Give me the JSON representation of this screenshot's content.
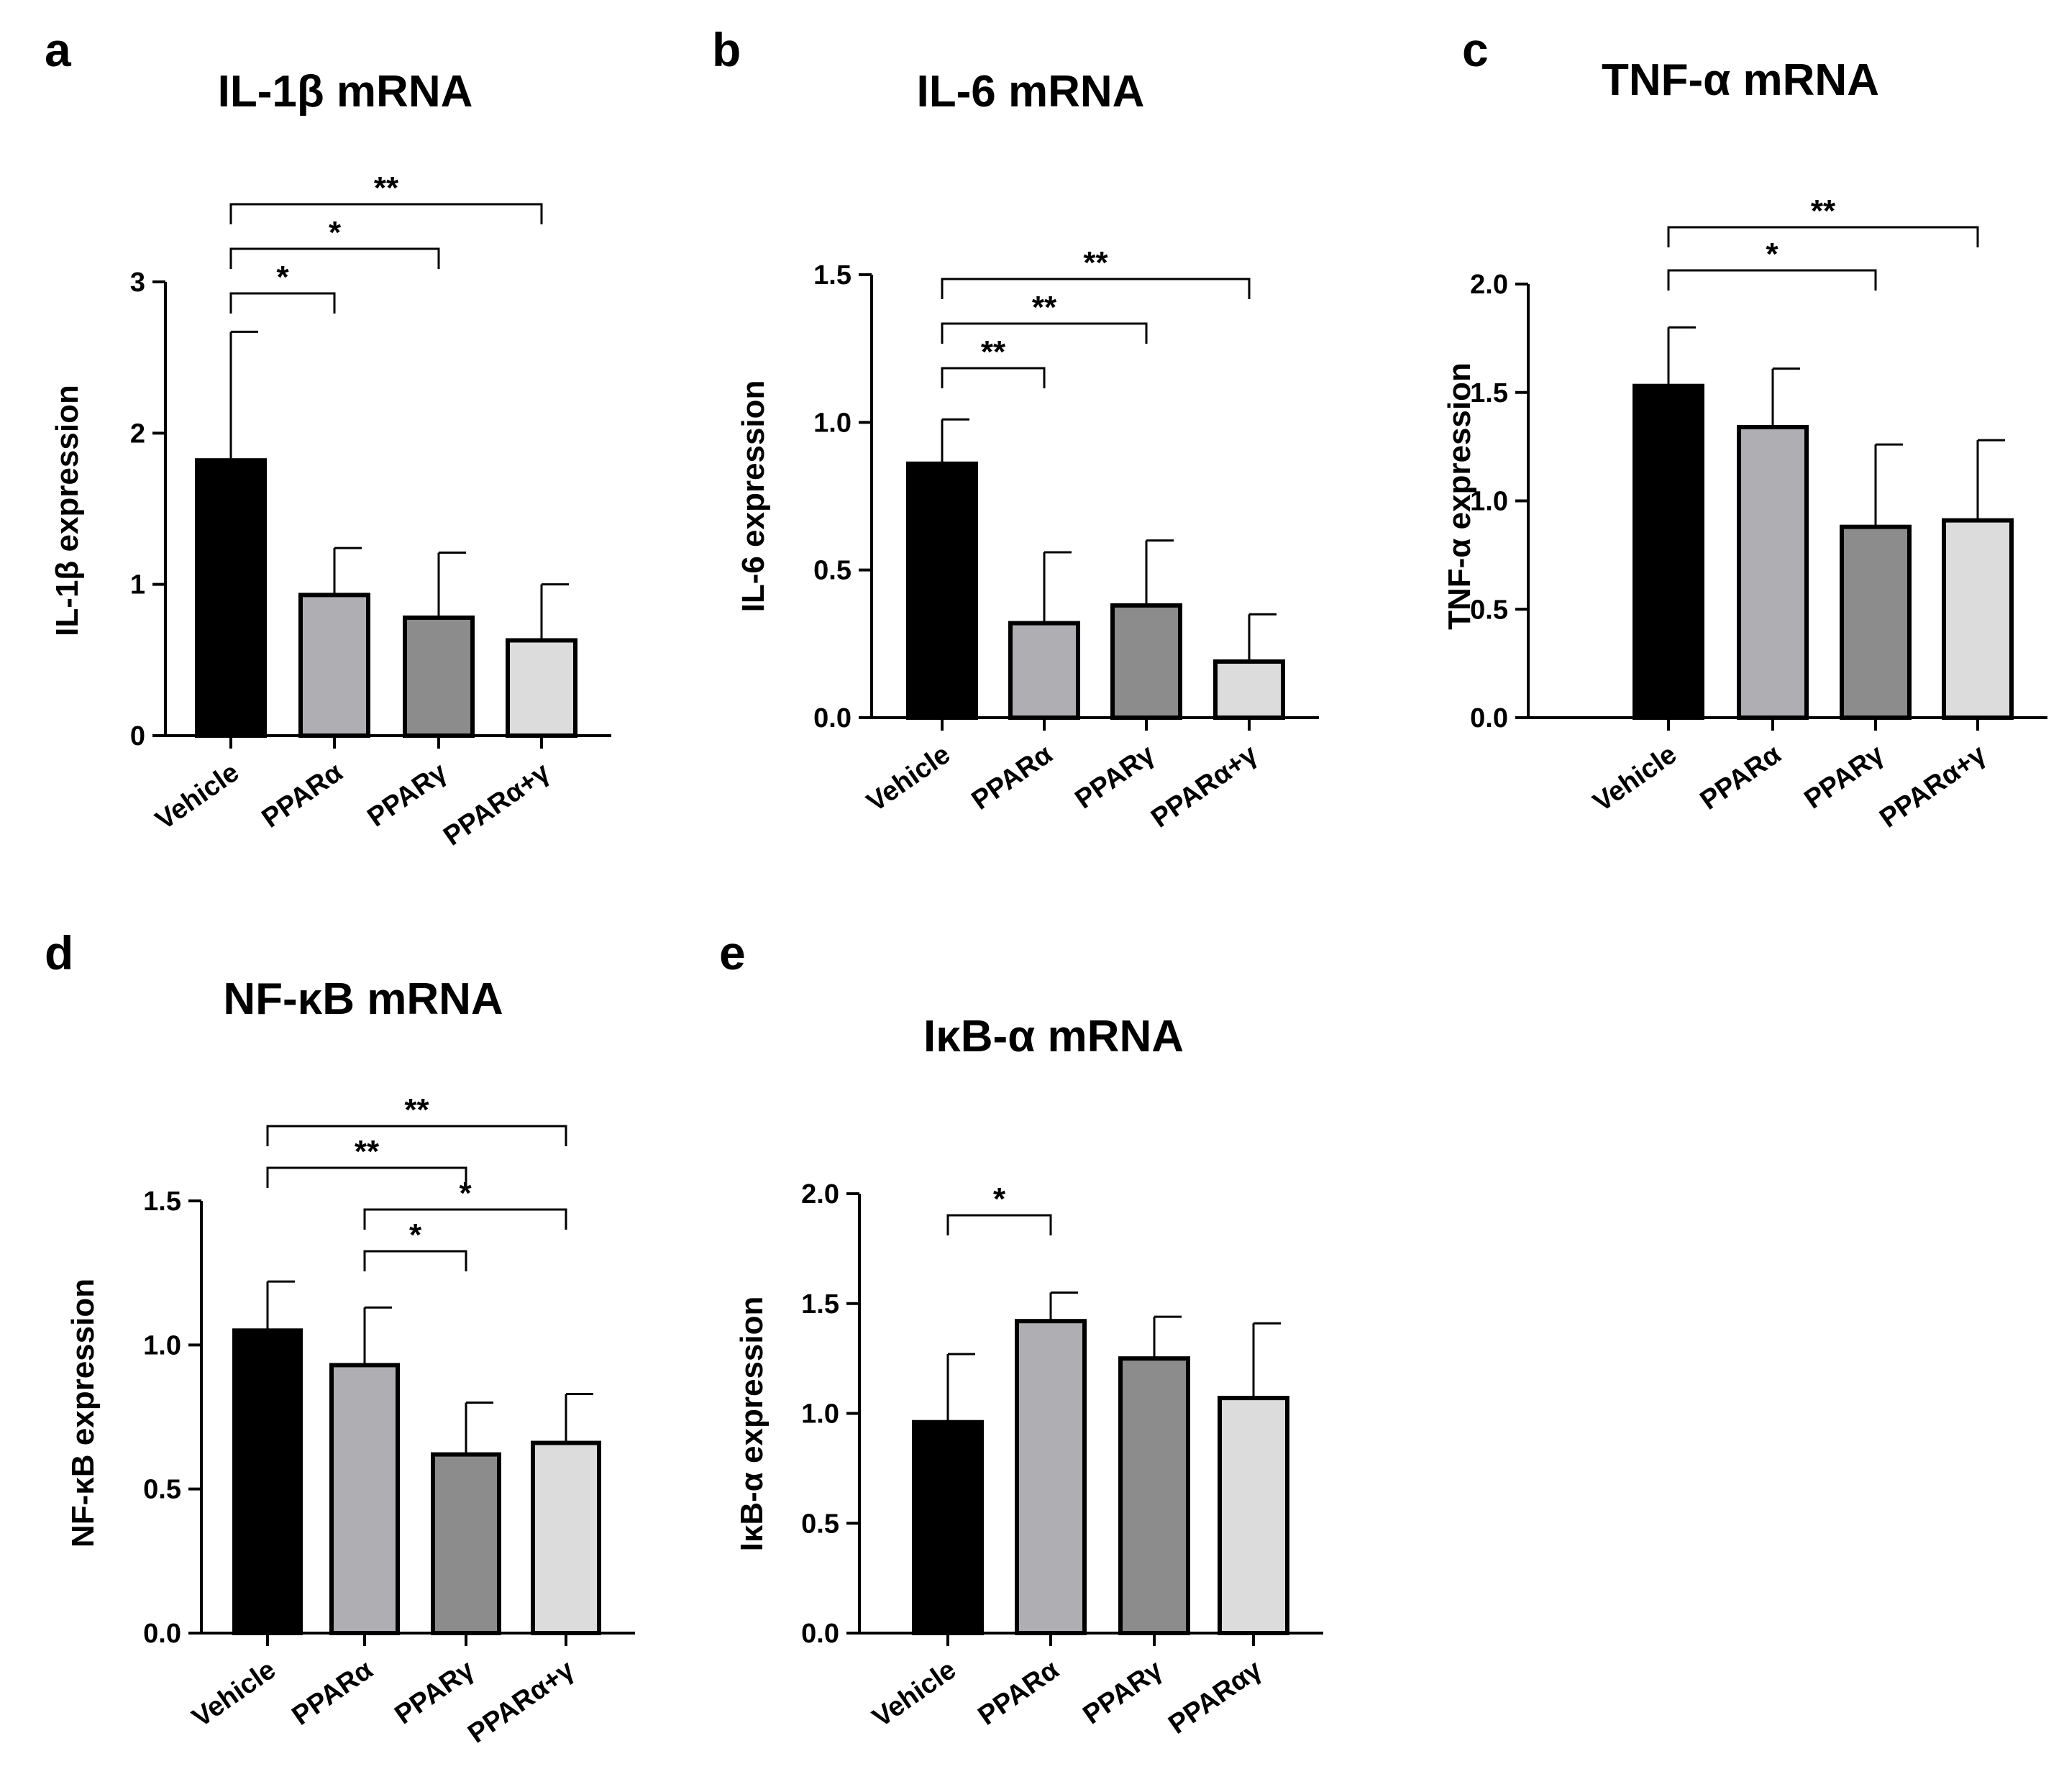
{
  "figure": {
    "name": "cytokine-mrna-expression-figure"
  },
  "chart_data": [
    {
      "panel": "a",
      "type": "bar",
      "title": "IL-1β mRNA",
      "ylabel": "IL-1β expression",
      "xlabel": "",
      "ylim": [
        0,
        3
      ],
      "yticks": [
        "0",
        "1",
        "2",
        "3"
      ],
      "ytick_values": [
        0,
        1,
        2,
        3
      ],
      "categories": [
        "Vehicle",
        "PPARα",
        "PPARγ",
        "PPARα+γ"
      ],
      "values": [
        1.82,
        0.93,
        0.78,
        0.63
      ],
      "errors": [
        0.85,
        0.31,
        0.43,
        0.37
      ],
      "bar_colors": [
        "#000000",
        "#afafb3",
        "#8c8c8c",
        "#dcdcdc"
      ],
      "significance": [
        {
          "from": 0,
          "to": 1,
          "label": "*"
        },
        {
          "from": 0,
          "to": 2,
          "label": "*"
        },
        {
          "from": 0,
          "to": 3,
          "label": "**"
        }
      ]
    },
    {
      "panel": "b",
      "type": "bar",
      "title": "IL-6 mRNA",
      "ylabel": "IL-6 expression",
      "xlabel": "",
      "ylim": [
        0,
        1.5
      ],
      "yticks": [
        "0.0",
        "0.5",
        "1.0",
        "1.5"
      ],
      "ytick_values": [
        0,
        0.5,
        1.0,
        1.5
      ],
      "categories": [
        "Vehicle",
        "PPARα",
        "PPARγ",
        "PPARα+γ"
      ],
      "values": [
        0.86,
        0.32,
        0.38,
        0.19
      ],
      "errors": [
        0.15,
        0.24,
        0.22,
        0.16
      ],
      "bar_colors": [
        "#000000",
        "#afafb3",
        "#8c8c8c",
        "#dcdcdc"
      ],
      "significance": [
        {
          "from": 0,
          "to": 1,
          "label": "**"
        },
        {
          "from": 0,
          "to": 2,
          "label": "**"
        },
        {
          "from": 0,
          "to": 3,
          "label": "**"
        }
      ]
    },
    {
      "panel": "c",
      "type": "bar",
      "title": "TNF-α mRNA",
      "ylabel": "TNF-α expression",
      "xlabel": "",
      "ylim": [
        0,
        2.0
      ],
      "yticks": [
        "0.0",
        "0.5",
        "1.0",
        "1.5",
        "2.0"
      ],
      "ytick_values": [
        0,
        0.5,
        1.0,
        1.5,
        2.0
      ],
      "categories": [
        "Vehicle",
        "PPARα",
        "PPARγ",
        "PPARα+γ"
      ],
      "values": [
        1.53,
        1.34,
        0.88,
        0.91
      ],
      "errors": [
        0.27,
        0.27,
        0.38,
        0.37
      ],
      "bar_colors": [
        "#000000",
        "#afafb3",
        "#8c8c8c",
        "#dcdcdc"
      ],
      "significance": [
        {
          "from": 0,
          "to": 2,
          "label": "*"
        },
        {
          "from": 0,
          "to": 3,
          "label": "**"
        }
      ]
    },
    {
      "panel": "d",
      "type": "bar",
      "title": "NF-κB mRNA",
      "ylabel": "NF-κB expression",
      "xlabel": "",
      "ylim": [
        0,
        1.5
      ],
      "yticks": [
        "0.0",
        "0.5",
        "1.0",
        "1.5"
      ],
      "ytick_values": [
        0,
        0.5,
        1.0,
        1.5
      ],
      "categories": [
        "Vehicle",
        "PPARα",
        "PPARγ",
        "PPARα+γ"
      ],
      "values": [
        1.05,
        0.93,
        0.62,
        0.66
      ],
      "errors": [
        0.17,
        0.2,
        0.18,
        0.17
      ],
      "bar_colors": [
        "#000000",
        "#afafb3",
        "#8c8c8c",
        "#dcdcdc"
      ],
      "significance": [
        {
          "from": 1,
          "to": 2,
          "label": "*"
        },
        {
          "from": 1,
          "to": 3,
          "label": "*"
        },
        {
          "from": 0,
          "to": 2,
          "label": "**"
        },
        {
          "from": 0,
          "to": 3,
          "label": "**"
        }
      ]
    },
    {
      "panel": "e",
      "type": "bar",
      "title": "IκB-α mRNA",
      "ylabel": "IκB-α  expression",
      "xlabel": "",
      "ylim": [
        0,
        2.0
      ],
      "yticks": [
        "0.0",
        "0.5",
        "1.0",
        "1.5",
        "2.0"
      ],
      "ytick_values": [
        0,
        0.5,
        1.0,
        1.5,
        2.0
      ],
      "categories": [
        "Vehicle",
        "PPARα",
        "PPARγ",
        "PPARαγ"
      ],
      "values": [
        0.96,
        1.42,
        1.25,
        1.07
      ],
      "errors": [
        0.31,
        0.13,
        0.19,
        0.34
      ],
      "bar_colors": [
        "#000000",
        "#afafb3",
        "#8c8c8c",
        "#dcdcdc"
      ],
      "significance": [
        {
          "from": 0,
          "to": 1,
          "label": "*"
        }
      ]
    }
  ]
}
